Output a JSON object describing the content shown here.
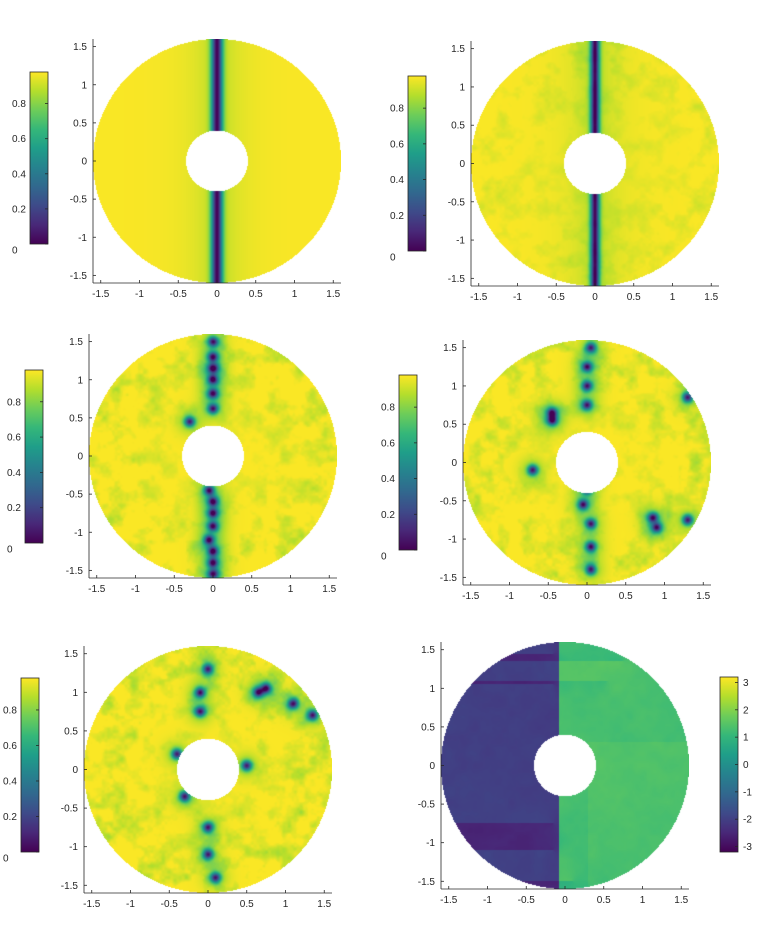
{
  "chart_data": [
    {
      "type": "heatmap",
      "panel": 1,
      "title": "",
      "xlabel": "",
      "ylabel": "",
      "xlim": [
        -1.6,
        1.6
      ],
      "ylim": [
        -1.6,
        1.6
      ],
      "xticks": [
        -1.5,
        -1,
        -0.5,
        0,
        0.5,
        1,
        1.5
      ],
      "xtick_labels": [
        "-1.5",
        "-1",
        "-0.5",
        "0",
        "0.5",
        "1",
        "1.5"
      ],
      "yticks": [
        -1.5,
        -1,
        -0.5,
        0,
        0.5,
        1,
        1.5
      ],
      "ytick_labels": [
        "-1.5",
        "-1",
        "-0.5",
        "0",
        "0.5",
        "1",
        "1.5"
      ],
      "annulus": {
        "inner_radius": 0.4,
        "outer_radius": 1.6
      },
      "colorbar": {
        "position": "left",
        "colormap": "viridis",
        "range": [
          0,
          0.98
        ],
        "ticks": [
          0,
          0.2,
          0.4,
          0.6,
          0.8
        ],
        "tick_labels": [
          "0",
          "0.2",
          "0.4",
          "0.6",
          "0.8"
        ]
      },
      "features": {
        "vertical_wall_x": 0,
        "wall_width": 0.05,
        "vortices": [],
        "noise": 0
      }
    },
    {
      "type": "heatmap",
      "panel": 2,
      "title": "",
      "xlabel": "",
      "ylabel": "",
      "xlim": [
        -1.6,
        1.6
      ],
      "ylim": [
        -1.6,
        1.6
      ],
      "xticks": [
        -1.5,
        -1,
        -0.5,
        0,
        0.5,
        1,
        1.5
      ],
      "xtick_labels": [
        "-1.5",
        "-1",
        "-0.5",
        "0",
        "0.5",
        "1",
        "1.5"
      ],
      "yticks": [
        -1.5,
        -1,
        -0.5,
        0,
        0.5,
        1,
        1.5
      ],
      "ytick_labels": [
        "-1.5",
        "-1",
        "-0.5",
        "0",
        "0.5",
        "1",
        "1.5"
      ],
      "annulus": {
        "inner_radius": 0.4,
        "outer_radius": 1.6
      },
      "colorbar": {
        "position": "left",
        "colormap": "viridis",
        "range": [
          0,
          0.98
        ],
        "ticks": [
          0,
          0.2,
          0.4,
          0.6,
          0.8
        ],
        "tick_labels": [
          "0",
          "0.2",
          "0.4",
          "0.6",
          "0.8"
        ]
      },
      "features": {
        "vertical_wall_x": 0,
        "wall_width": 0.04,
        "vortices": [],
        "noise": 0.35
      }
    },
    {
      "type": "heatmap",
      "panel": 3,
      "title": "",
      "xlabel": "",
      "ylabel": "",
      "xlim": [
        -1.6,
        1.6
      ],
      "ylim": [
        -1.6,
        1.6
      ],
      "xticks": [
        -1.5,
        -1,
        -0.5,
        0,
        0.5,
        1,
        1.5
      ],
      "xtick_labels": [
        "-1.5",
        "-1",
        "-0.5",
        "0",
        "0.5",
        "1",
        "1.5"
      ],
      "yticks": [
        -1.5,
        -1,
        -0.5,
        0,
        0.5,
        1,
        1.5
      ],
      "ytick_labels": [
        "-1.5",
        "-1",
        "-0.5",
        "0",
        "0.5",
        "1",
        "1.5"
      ],
      "annulus": {
        "inner_radius": 0.4,
        "outer_radius": 1.6
      },
      "colorbar": {
        "position": "left",
        "colormap": "viridis",
        "range": [
          0,
          0.98
        ],
        "ticks": [
          0,
          0.2,
          0.4,
          0.6,
          0.8
        ],
        "tick_labels": [
          "0",
          "0.2",
          "0.4",
          "0.6",
          "0.8"
        ]
      },
      "features": {
        "vertical_wall_x": null,
        "noise": 0.6,
        "vortices": [
          [
            0,
            1.5
          ],
          [
            0,
            1.3
          ],
          [
            0,
            1.15
          ],
          [
            0,
            1.0
          ],
          [
            0,
            0.82
          ],
          [
            0,
            0.62
          ],
          [
            -0.3,
            0.45
          ],
          [
            -0.05,
            -0.45
          ],
          [
            0,
            -0.6
          ],
          [
            0,
            -0.75
          ],
          [
            0,
            -0.92
          ],
          [
            -0.05,
            -1.1
          ],
          [
            0,
            -1.25
          ],
          [
            0,
            -1.4
          ],
          [
            0,
            -1.55
          ]
        ]
      }
    },
    {
      "type": "heatmap",
      "panel": 4,
      "title": "",
      "xlabel": "",
      "ylabel": "",
      "xlim": [
        -1.6,
        1.6
      ],
      "ylim": [
        -1.6,
        1.6
      ],
      "xticks": [
        -1.5,
        -1,
        -0.5,
        0,
        0.5,
        1,
        1.5
      ],
      "xtick_labels": [
        "-1.5",
        "-1",
        "-0.5",
        "0",
        "0.5",
        "1",
        "1.5"
      ],
      "yticks": [
        -1.5,
        -1,
        -0.5,
        0,
        0.5,
        1,
        1.5
      ],
      "ytick_labels": [
        "-1.5",
        "-1",
        "-0.5",
        "0",
        "0.5",
        "1",
        "1.5"
      ],
      "annulus": {
        "inner_radius": 0.4,
        "outer_radius": 1.6
      },
      "colorbar": {
        "position": "left",
        "colormap": "viridis",
        "range": [
          0,
          0.98
        ],
        "ticks": [
          0,
          0.2,
          0.4,
          0.6,
          0.8
        ],
        "tick_labels": [
          "0",
          "0.2",
          "0.4",
          "0.6",
          "0.8"
        ]
      },
      "features": {
        "vertical_wall_x": null,
        "noise": 0.6,
        "vortices": [
          [
            0.05,
            1.5
          ],
          [
            0,
            1.25
          ],
          [
            0,
            1.0
          ],
          [
            0,
            0.75
          ],
          [
            -0.45,
            0.65
          ],
          [
            -0.45,
            0.55
          ],
          [
            0,
            -0.35
          ],
          [
            -0.05,
            -0.55
          ],
          [
            0.05,
            -0.8
          ],
          [
            0.05,
            -1.1
          ],
          [
            0.05,
            -1.4
          ],
          [
            0.85,
            -0.72
          ],
          [
            0.9,
            -0.85
          ],
          [
            1.3,
            -0.75
          ],
          [
            1.3,
            0.85
          ],
          [
            -0.7,
            -0.1
          ]
        ]
      }
    },
    {
      "type": "heatmap",
      "panel": 5,
      "title": "",
      "xlabel": "",
      "ylabel": "",
      "xlim": [
        -1.6,
        1.6
      ],
      "ylim": [
        -1.6,
        1.6
      ],
      "xticks": [
        -1.5,
        -1,
        -0.5,
        0,
        0.5,
        1,
        1.5
      ],
      "xtick_labels": [
        "-1.5",
        "-1",
        "-0.5",
        "0",
        "0.5",
        "1",
        "1.5"
      ],
      "yticks": [
        -1.5,
        -1,
        -0.5,
        0,
        0.5,
        1,
        1.5
      ],
      "ytick_labels": [
        "-1.5",
        "-1",
        "-0.5",
        "0",
        "0.5",
        "1",
        "1.5"
      ],
      "annulus": {
        "inner_radius": 0.4,
        "outer_radius": 1.6
      },
      "colorbar": {
        "position": "left",
        "colormap": "viridis",
        "range": [
          0,
          0.98
        ],
        "ticks": [
          0,
          0.2,
          0.4,
          0.6,
          0.8
        ],
        "tick_labels": [
          "0",
          "0.2",
          "0.4",
          "0.6",
          "0.8"
        ]
      },
      "features": {
        "vertical_wall_x": null,
        "noise": 0.7,
        "vortices": [
          [
            0,
            1.3
          ],
          [
            -0.1,
            1.0
          ],
          [
            -0.1,
            0.75
          ],
          [
            -0.3,
            -0.35
          ],
          [
            0,
            -0.75
          ],
          [
            0,
            -1.1
          ],
          [
            0.1,
            -1.4
          ],
          [
            0.65,
            1.0
          ],
          [
            0.75,
            1.05
          ],
          [
            1.1,
            0.85
          ],
          [
            1.35,
            0.7
          ],
          [
            -0.4,
            0.2
          ],
          [
            0.5,
            0.05
          ]
        ]
      }
    },
    {
      "type": "heatmap",
      "panel": 6,
      "title": "",
      "xlabel": "",
      "ylabel": "",
      "xlim": [
        -1.6,
        1.6
      ],
      "ylim": [
        -1.6,
        1.6
      ],
      "xticks": [
        -1.5,
        -1,
        -0.5,
        0,
        0.5,
        1,
        1.5
      ],
      "xtick_labels": [
        "-1.5",
        "-1",
        "-0.5",
        "0",
        "0.5",
        "1",
        "1.5"
      ],
      "yticks": [
        -1.5,
        -1,
        -0.5,
        0,
        0.5,
        1,
        1.5
      ],
      "ytick_labels": [
        "-1.5",
        "-1",
        "-0.5",
        "0",
        "0.5",
        "1",
        "1.5"
      ],
      "annulus": {
        "inner_radius": 0.4,
        "outer_radius": 1.6
      },
      "colorbar": {
        "position": "right",
        "colormap": "viridis",
        "range": [
          -3.2,
          3.2
        ],
        "ticks": [
          -3,
          -2,
          -1,
          0,
          1,
          2,
          3
        ],
        "tick_labels": [
          "-3",
          "-2",
          "-1",
          "0",
          "1",
          "2",
          "3"
        ]
      },
      "features": {
        "phase_field": true,
        "vortices": [
          [
            -0.15,
            1.45
          ],
          [
            -0.15,
            1.05
          ],
          [
            0.55,
            1.1
          ],
          [
            0.75,
            1.35
          ],
          [
            -0.15,
            -0.75
          ],
          [
            -0.15,
            -1.1
          ],
          [
            0.1,
            -1.5
          ]
        ]
      }
    }
  ]
}
